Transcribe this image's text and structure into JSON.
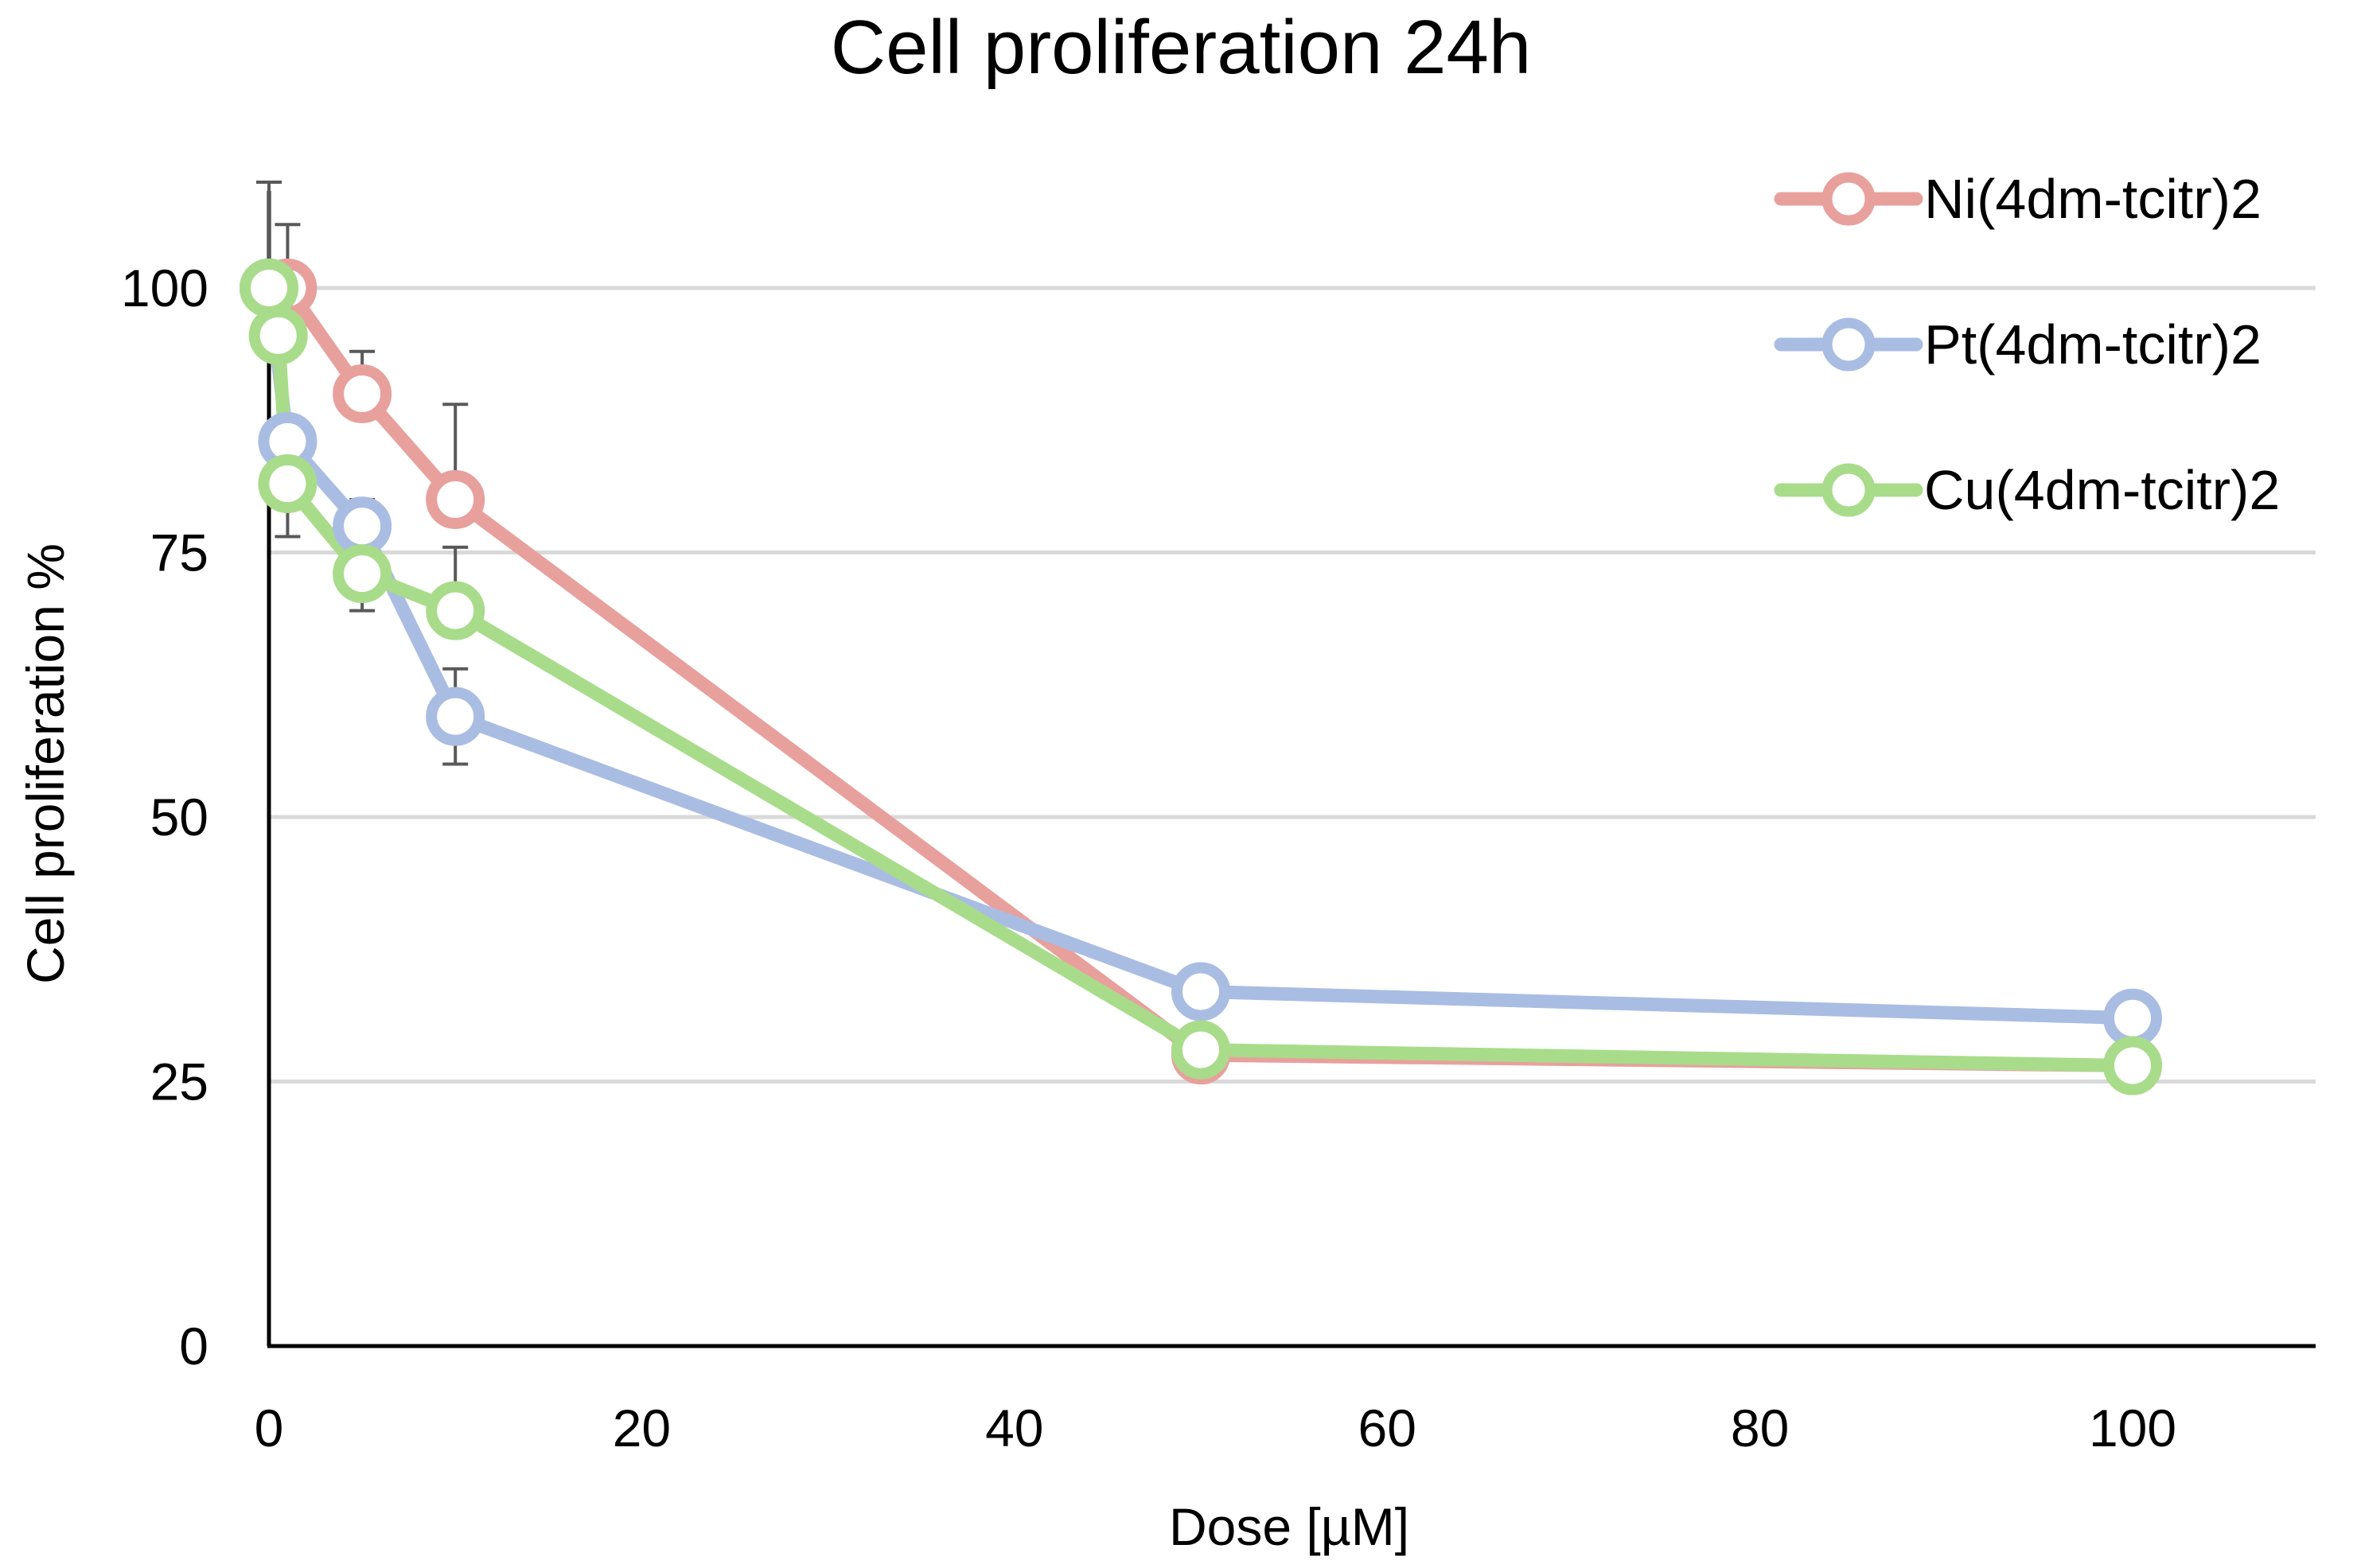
{
  "chart_data": {
    "type": "line",
    "title": "Cell proliferation 24h",
    "xlabel": "Dose [µM]",
    "ylabel": "Cell proliferation %",
    "xlim": [
      0,
      110
    ],
    "ylim": [
      0,
      110
    ],
    "x_ticks": [
      0,
      20,
      40,
      60,
      80,
      100
    ],
    "y_ticks": [
      0,
      25,
      50,
      75,
      100
    ],
    "x_tick_labels": [
      "0",
      "20",
      "40",
      "60",
      "80",
      "100"
    ],
    "y_tick_labels": [
      "0",
      "25",
      "50",
      "75",
      "100"
    ],
    "grid": "horizontal",
    "legend_position": "top-right",
    "series": [
      {
        "name": "Ni(4dm-tcitr)2",
        "color": "#e8a09c",
        "x": [
          0,
          1,
          5,
          10,
          50,
          100
        ],
        "y": [
          100,
          100,
          90,
          80,
          27.5,
          26.5
        ],
        "error_top": [
          null,
          106,
          94,
          89,
          null,
          null
        ],
        "error_bottom": [
          null,
          null,
          null,
          null,
          null,
          null
        ]
      },
      {
        "name": "Pt(4dm-tcitr)2",
        "color": "#a9bde3",
        "x": [
          0,
          1,
          5,
          10,
          50,
          100
        ],
        "y": [
          100,
          85.5,
          77.5,
          59.5,
          33.5,
          31
        ],
        "error_top": [
          110,
          null,
          80,
          64,
          null,
          null
        ],
        "error_bottom": [
          null,
          76.5,
          69.5,
          55,
          null,
          null
        ]
      },
      {
        "name": "Cu(4dm-tcitr)2",
        "color": "#a8dc8a",
        "x": [
          0,
          0.5,
          1,
          5,
          10,
          50,
          100
        ],
        "y": [
          100,
          95.5,
          81.5,
          73,
          69.5,
          28,
          26.5
        ],
        "error_top": [
          110,
          null,
          null,
          null,
          75.5,
          null,
          null
        ],
        "error_bottom": [
          null,
          null,
          null,
          null,
          null,
          null,
          null
        ]
      }
    ]
  }
}
